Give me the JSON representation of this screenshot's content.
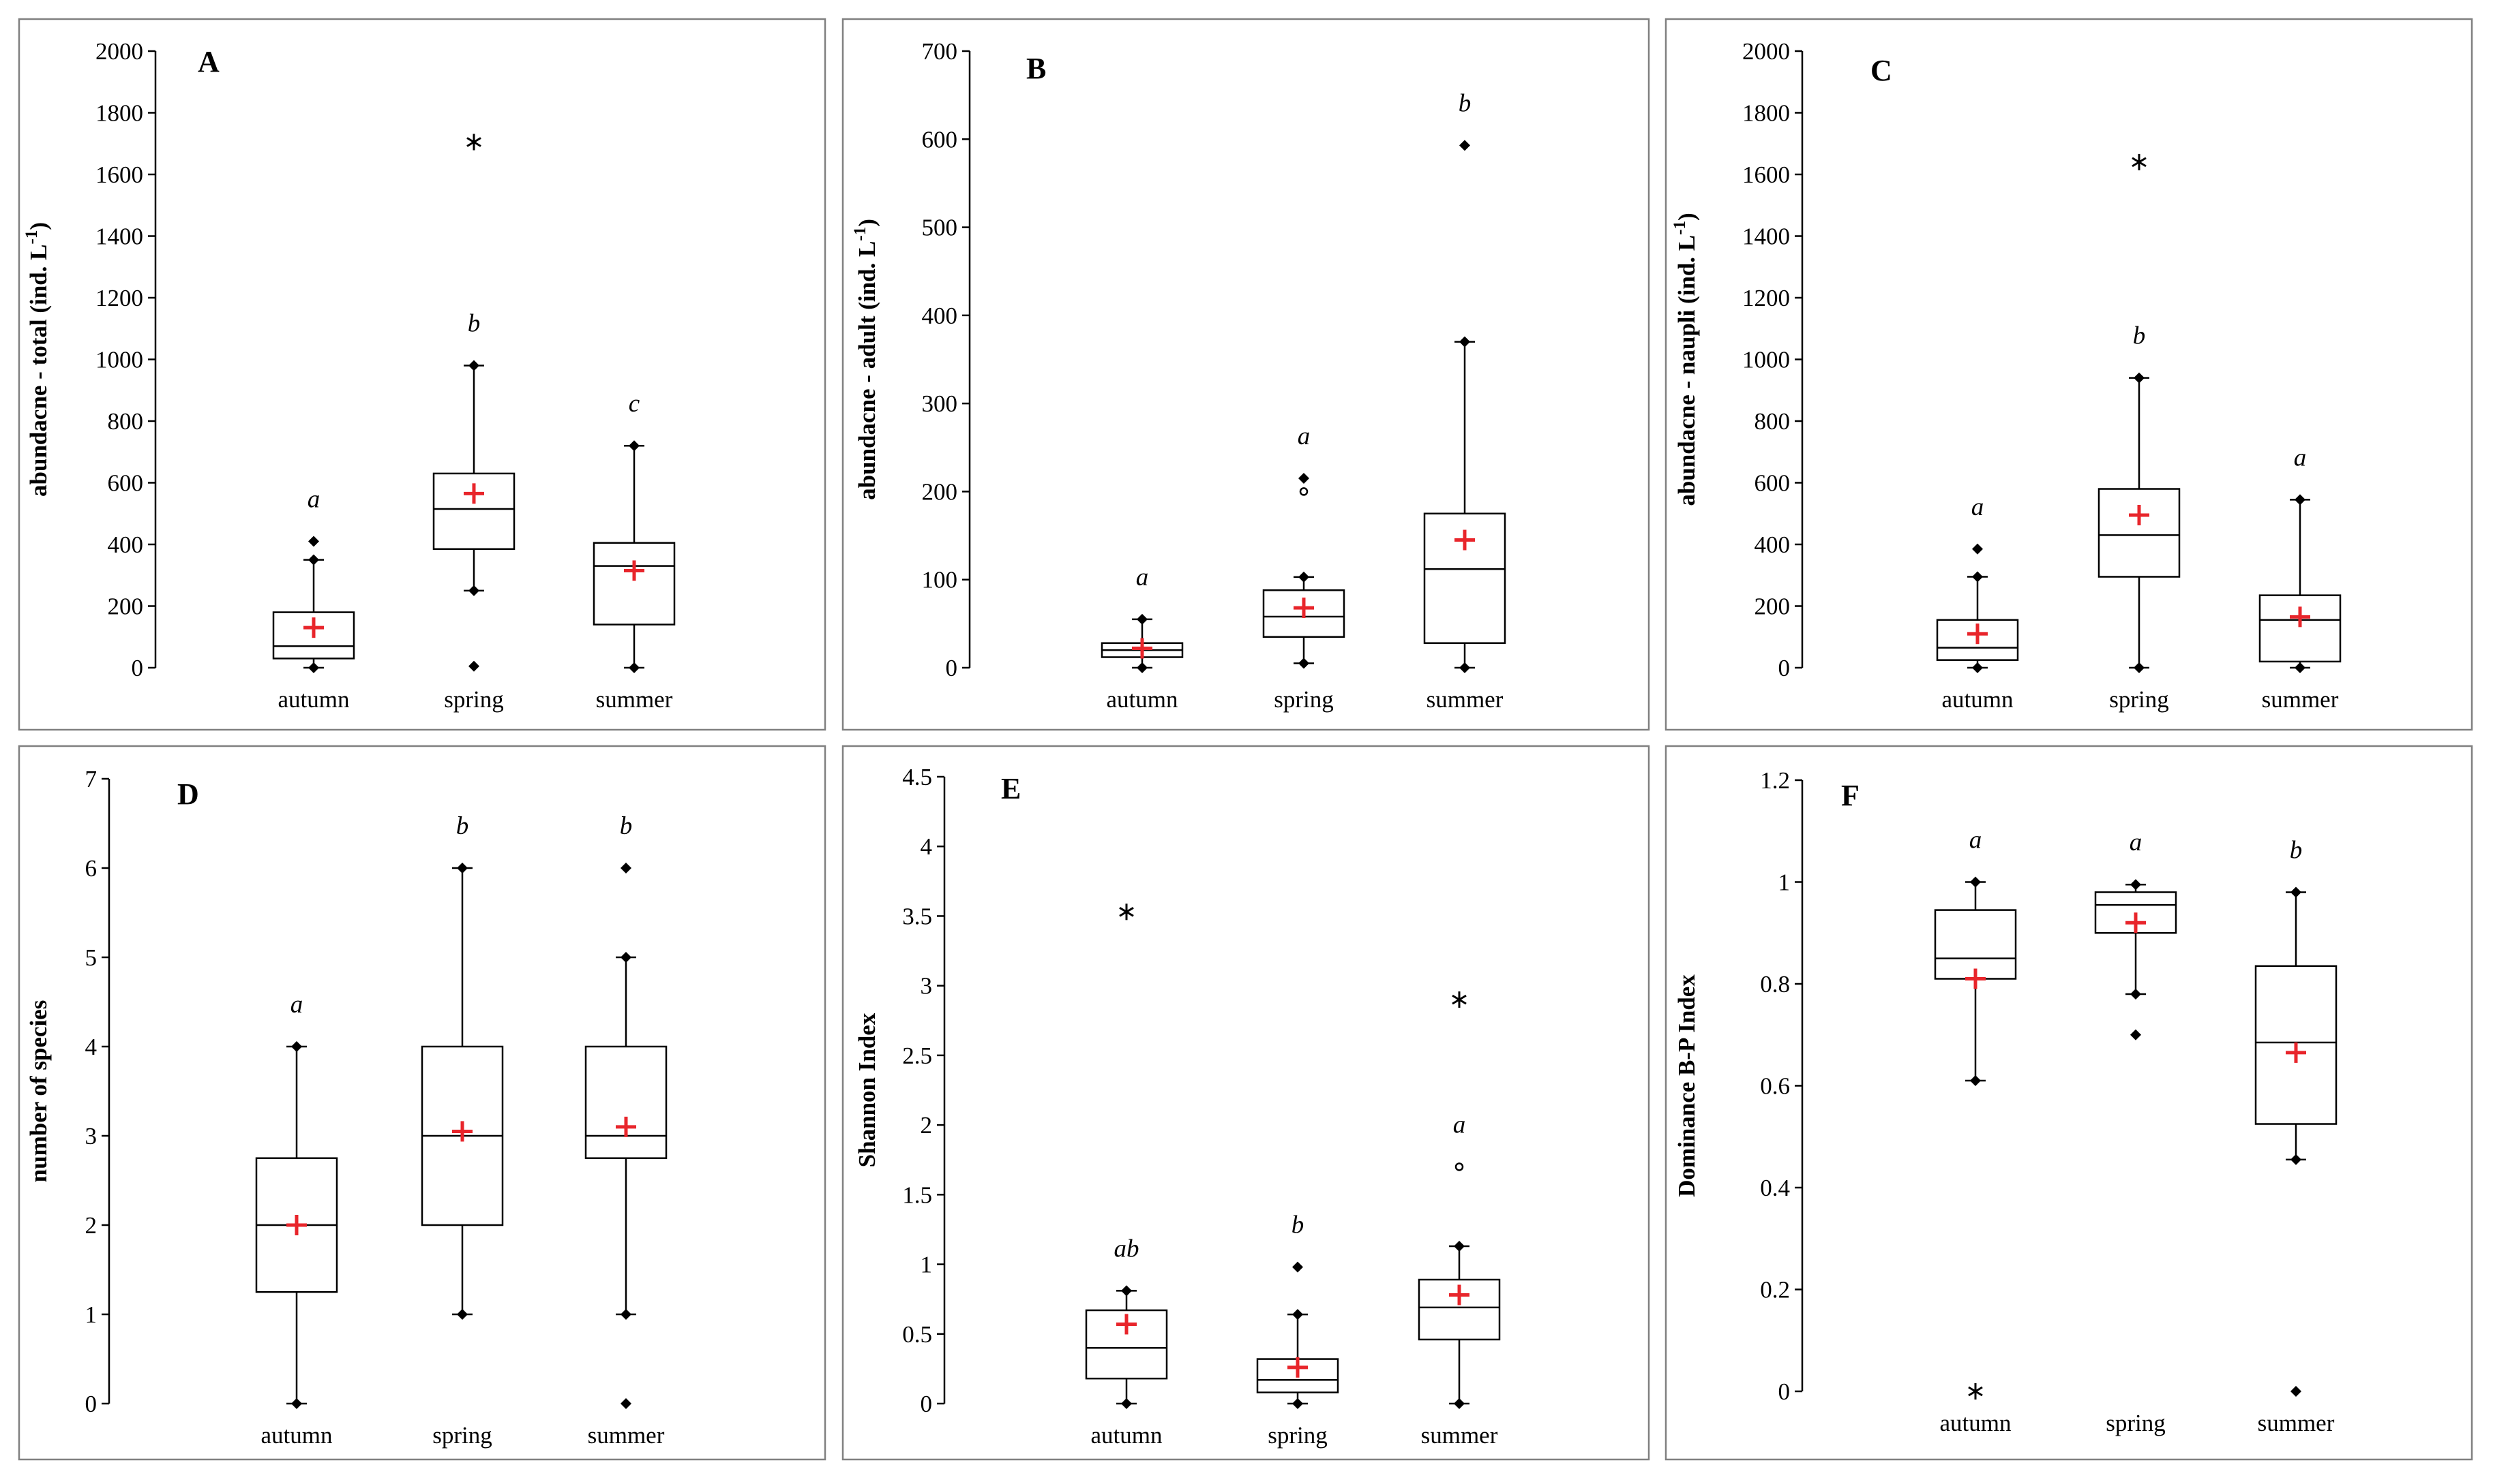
{
  "chart_data": [
    {
      "type": "box",
      "panel_label": "A",
      "ylabel": "abundacne  - total (ind. L",
      "ylabel_sup": "-1",
      "ylabel_end": ")",
      "ylim": [
        0,
        2000
      ],
      "yticks": [
        0,
        200,
        400,
        600,
        800,
        1000,
        1200,
        1400,
        1600,
        1800,
        2000
      ],
      "categories": [
        "autumn",
        "spring",
        "summer"
      ],
      "boxes": [
        {
          "category": "autumn",
          "whisker_low": 0,
          "q1": 30,
          "median": 70,
          "q3": 180,
          "whisker_high": 350,
          "mean": 130,
          "points": [
            {
              "value": 410,
              "marker": "dot"
            }
          ],
          "sig": "a"
        },
        {
          "category": "spring",
          "whisker_low": 250,
          "q1": 385,
          "median": 515,
          "q3": 630,
          "whisker_high": 980,
          "mean": 565,
          "points": [
            {
              "value": 5,
              "marker": "dot"
            },
            {
              "value": 1705,
              "marker": "star"
            }
          ],
          "sig": "b"
        },
        {
          "category": "summer",
          "whisker_low": 0,
          "q1": 140,
          "median": 330,
          "q3": 405,
          "whisker_high": 720,
          "mean": 315,
          "points": [],
          "sig": "c"
        }
      ]
    },
    {
      "type": "box",
      "panel_label": "B",
      "ylabel": "abundacne  - adult (ind. L",
      "ylabel_sup": "-1",
      "ylabel_end": ")",
      "ylim": [
        0,
        700
      ],
      "yticks": [
        0,
        100,
        200,
        300,
        400,
        500,
        600,
        700
      ],
      "categories": [
        "autumn",
        "spring",
        "summer"
      ],
      "boxes": [
        {
          "category": "autumn",
          "whisker_low": 0,
          "q1": 12,
          "median": 20,
          "q3": 28,
          "whisker_high": 55,
          "mean": 22,
          "points": [],
          "sig": "a"
        },
        {
          "category": "spring",
          "whisker_low": 5,
          "q1": 35,
          "median": 58,
          "q3": 88,
          "whisker_high": 103,
          "mean": 68,
          "points": [
            {
              "value": 200,
              "marker": "circle"
            },
            {
              "value": 215,
              "marker": "dot"
            }
          ],
          "sig": "a"
        },
        {
          "category": "summer",
          "whisker_low": 0,
          "q1": 28,
          "median": 112,
          "q3": 175,
          "whisker_high": 370,
          "mean": 145,
          "points": [
            {
              "value": 593,
              "marker": "dot"
            }
          ],
          "sig": "b"
        }
      ]
    },
    {
      "type": "box",
      "panel_label": "C",
      "ylabel": "abundacne  - naupli (ind. L",
      "ylabel_sup": "-1",
      "ylabel_end": ")",
      "ylim": [
        0,
        2000
      ],
      "yticks": [
        0,
        200,
        400,
        600,
        800,
        1000,
        1200,
        1400,
        1600,
        1800,
        2000
      ],
      "categories": [
        "autumn",
        "spring",
        "summer"
      ],
      "boxes": [
        {
          "category": "autumn",
          "whisker_low": 0,
          "q1": 25,
          "median": 65,
          "q3": 155,
          "whisker_high": 295,
          "mean": 110,
          "points": [
            {
              "value": 385,
              "marker": "dot"
            }
          ],
          "sig": "a"
        },
        {
          "category": "spring",
          "whisker_low": 0,
          "q1": 295,
          "median": 430,
          "q3": 580,
          "whisker_high": 940,
          "mean": 495,
          "points": [
            {
              "value": 1640,
              "marker": "star"
            }
          ],
          "sig": "b"
        },
        {
          "category": "summer",
          "whisker_low": 0,
          "q1": 20,
          "median": 155,
          "q3": 235,
          "whisker_high": 545,
          "mean": 165,
          "points": [],
          "sig": "a"
        }
      ]
    },
    {
      "type": "box",
      "panel_label": "D",
      "ylabel": "number  of species",
      "ylabel_sup": "",
      "ylabel_end": "",
      "ylim": [
        0,
        7
      ],
      "yticks": [
        0,
        1,
        2,
        3,
        4,
        5,
        6,
        7
      ],
      "categories": [
        "autumn",
        "spring",
        "summer"
      ],
      "boxes": [
        {
          "category": "autumn",
          "whisker_low": 0,
          "q1": 1.25,
          "median": 2,
          "q3": 2.75,
          "whisker_high": 4,
          "mean": 2,
          "points": [],
          "sig": "a"
        },
        {
          "category": "spring",
          "whisker_low": 1,
          "q1": 2,
          "median": 3,
          "q3": 4,
          "whisker_high": 6,
          "mean": 3.05,
          "points": [],
          "sig": "b"
        },
        {
          "category": "summer",
          "whisker_low": 1,
          "q1": 2.75,
          "median": 3,
          "q3": 4,
          "whisker_high": 5,
          "mean": 3.1,
          "points": [
            {
              "value": 6,
              "marker": "dot"
            },
            {
              "value": 0,
              "marker": "dot"
            }
          ],
          "sig": "b"
        }
      ]
    },
    {
      "type": "box",
      "panel_label": "E",
      "ylabel": "Shannon Index",
      "ylabel_sup": "",
      "ylabel_end": "",
      "ylim": [
        0,
        4.5
      ],
      "yticks": [
        0,
        0.5,
        1,
        1.5,
        2,
        2.5,
        3,
        3.5,
        4,
        4.5
      ],
      "categories": [
        "autumn",
        "spring",
        "summer"
      ],
      "boxes": [
        {
          "category": "autumn",
          "whisker_low": 0,
          "q1": 0.18,
          "median": 0.4,
          "q3": 0.67,
          "whisker_high": 0.81,
          "mean": 0.57,
          "points": [
            {
              "value": 3.53,
              "marker": "star"
            }
          ],
          "sig": "ab"
        },
        {
          "category": "spring",
          "whisker_low": 0,
          "q1": 0.08,
          "median": 0.17,
          "q3": 0.32,
          "whisker_high": 0.64,
          "mean": 0.26,
          "points": [
            {
              "value": 0.98,
              "marker": "dot"
            }
          ],
          "sig": "b"
        },
        {
          "category": "summer",
          "whisker_low": 0,
          "q1": 0.46,
          "median": 0.69,
          "q3": 0.89,
          "whisker_high": 1.13,
          "mean": 0.78,
          "points": [
            {
              "value": 1.7,
              "marker": "circle"
            },
            {
              "value": 2.9,
              "marker": "star"
            }
          ],
          "sig": "a"
        }
      ]
    },
    {
      "type": "box",
      "panel_label": "F",
      "ylabel": "Dominance  B-P Index",
      "ylabel_sup": "",
      "ylabel_end": "",
      "ylim": [
        0,
        1.2
      ],
      "yticks": [
        0,
        0.2,
        0.4,
        0.6,
        0.8,
        1,
        1.2
      ],
      "categories": [
        "autumn",
        "spring",
        "summer"
      ],
      "boxes": [
        {
          "category": "autumn",
          "whisker_low": 0.61,
          "q1": 0.81,
          "median": 0.85,
          "q3": 0.945,
          "whisker_high": 1.0,
          "mean": 0.81,
          "points": [
            {
              "value": 0,
              "marker": "star"
            }
          ],
          "sig": "a"
        },
        {
          "category": "spring",
          "whisker_low": 0.78,
          "q1": 0.9,
          "median": 0.955,
          "q3": 0.98,
          "whisker_high": 0.995,
          "mean": 0.92,
          "points": [
            {
              "value": 0.7,
              "marker": "dot"
            }
          ],
          "sig": "a"
        },
        {
          "category": "summer",
          "whisker_low": 0.455,
          "q1": 0.525,
          "median": 0.685,
          "q3": 0.835,
          "whisker_high": 0.98,
          "mean": 0.665,
          "points": [
            {
              "value": 0,
              "marker": "dot"
            }
          ],
          "sig": "b"
        }
      ]
    }
  ],
  "colors": {
    "mean_marker": "#e8252b",
    "box_stroke": "#000000",
    "frame_stroke": "#808080"
  }
}
